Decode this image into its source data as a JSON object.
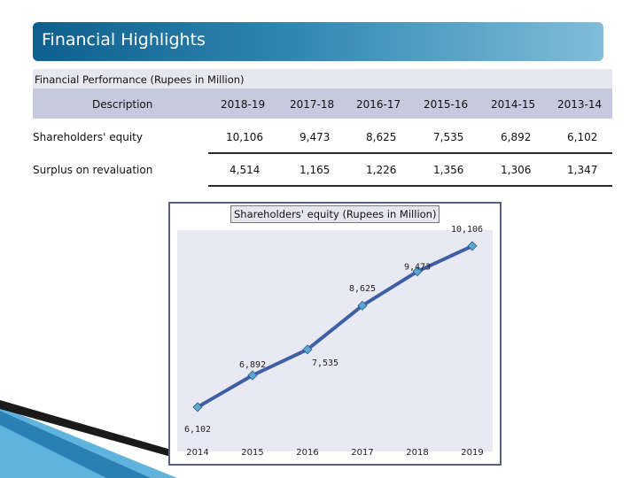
{
  "banner": {
    "title": "Financial Highlights"
  },
  "table": {
    "caption": "Financial Performance (Rupees in Million)",
    "description_header": "Description",
    "years": [
      "2018-19",
      "2017-18",
      "2016-17",
      "2015-16",
      "2014-15",
      "2013-14"
    ],
    "rows": [
      {
        "label": "Shareholders' equity",
        "values": [
          "10,106",
          "9,473",
          "8,625",
          "7,535",
          "6,892",
          "6,102"
        ]
      },
      {
        "label": "Surplus on revaluation",
        "values": [
          "4,514",
          "1,165",
          "1,226",
          "1,356",
          "1,306",
          "1,347"
        ]
      }
    ]
  },
  "chart_data": {
    "type": "line",
    "title": "Shareholders' equity (Rupees in Million)",
    "categories": [
      "2014",
      "2015",
      "2016",
      "2017",
      "2018",
      "2019"
    ],
    "values": [
      6102,
      6892,
      7535,
      8625,
      9473,
      10106
    ],
    "data_labels": [
      "6,102",
      "6,892",
      "7,535",
      "8,625",
      "9,473",
      "10,106"
    ],
    "ylim": [
      5000,
      10500
    ],
    "xlabel": "",
    "ylabel": "",
    "line_color": "#3f5fa5",
    "marker_color": "#5aa7d3"
  }
}
